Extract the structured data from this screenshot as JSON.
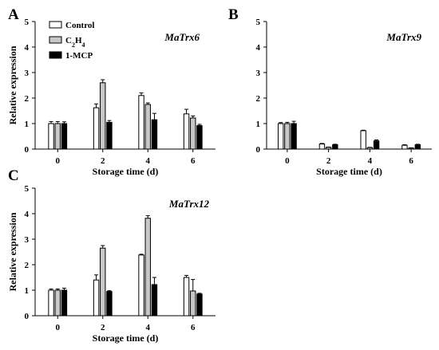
{
  "legend": {
    "entries": [
      {
        "label": "Control",
        "sub": "",
        "after": ""
      },
      {
        "label": "C",
        "sub": "2",
        "after": "H",
        "sub2": "4"
      },
      {
        "label": "1-MCP",
        "sub": "",
        "after": ""
      }
    ]
  },
  "colors": {
    "Control": "#ffffff",
    "C2H4": "#c8c8c8",
    "1-MCP": "#000000",
    "axis": "#000000"
  },
  "chart_data": [
    {
      "type": "bar",
      "panel": "A",
      "title": "MaTrx6",
      "xlabel": "Storage time (d)",
      "ylabel": "Relative expression",
      "categories": [
        "0",
        "2",
        "4",
        "6"
      ],
      "ylim": [
        0,
        5
      ],
      "yticks": [
        "0",
        "1",
        "2",
        "3",
        "4",
        "5"
      ],
      "series": [
        {
          "name": "Control",
          "values": [
            1.0,
            1.62,
            2.1,
            1.38
          ],
          "errors": [
            0.08,
            0.15,
            0.1,
            0.18
          ]
        },
        {
          "name": "C2H4",
          "values": [
            1.0,
            2.6,
            1.75,
            1.22
          ],
          "errors": [
            0.08,
            0.12,
            0.06,
            0.08
          ]
        },
        {
          "name": "1-MCP",
          "values": [
            1.0,
            1.05,
            1.15,
            0.92
          ],
          "errors": [
            0.07,
            0.07,
            0.25,
            0.05
          ]
        }
      ]
    },
    {
      "type": "bar",
      "panel": "B",
      "title": "MaTrx9",
      "xlabel": "Storage time (d)",
      "ylabel": "",
      "categories": [
        "0",
        "2",
        "4",
        "6"
      ],
      "ylim": [
        0,
        5
      ],
      "yticks": [
        "0",
        "1",
        "2",
        "3",
        "4",
        "5"
      ],
      "series": [
        {
          "name": "Control",
          "values": [
            1.0,
            0.2,
            0.72,
            0.15
          ],
          "errors": [
            0.04,
            0.02,
            0.02,
            0.02
          ]
        },
        {
          "name": "C2H4",
          "values": [
            1.0,
            0.07,
            0.06,
            0.04
          ],
          "errors": [
            0.05,
            0.01,
            0.01,
            0.01
          ]
        },
        {
          "name": "1-MCP",
          "values": [
            1.0,
            0.17,
            0.32,
            0.17
          ],
          "errors": [
            0.09,
            0.02,
            0.04,
            0.02
          ]
        }
      ]
    },
    {
      "type": "bar",
      "panel": "C",
      "title": "MaTrx12",
      "xlabel": "Storage time (d)",
      "ylabel": "Relative expression",
      "categories": [
        "0",
        "2",
        "4",
        "6"
      ],
      "ylim": [
        0,
        5
      ],
      "yticks": [
        "0",
        "1",
        "2",
        "3",
        "4",
        "5"
      ],
      "series": [
        {
          "name": "Control",
          "values": [
            1.0,
            1.4,
            2.38,
            1.5
          ],
          "errors": [
            0.05,
            0.2,
            0.03,
            0.08
          ]
        },
        {
          "name": "C2H4",
          "values": [
            1.0,
            2.65,
            3.82,
            0.97
          ],
          "errors": [
            0.05,
            0.1,
            0.1,
            0.45
          ]
        },
        {
          "name": "1-MCP",
          "values": [
            1.0,
            0.95,
            1.22,
            0.85
          ],
          "errors": [
            0.08,
            0.03,
            0.28,
            0.03
          ]
        }
      ]
    }
  ]
}
